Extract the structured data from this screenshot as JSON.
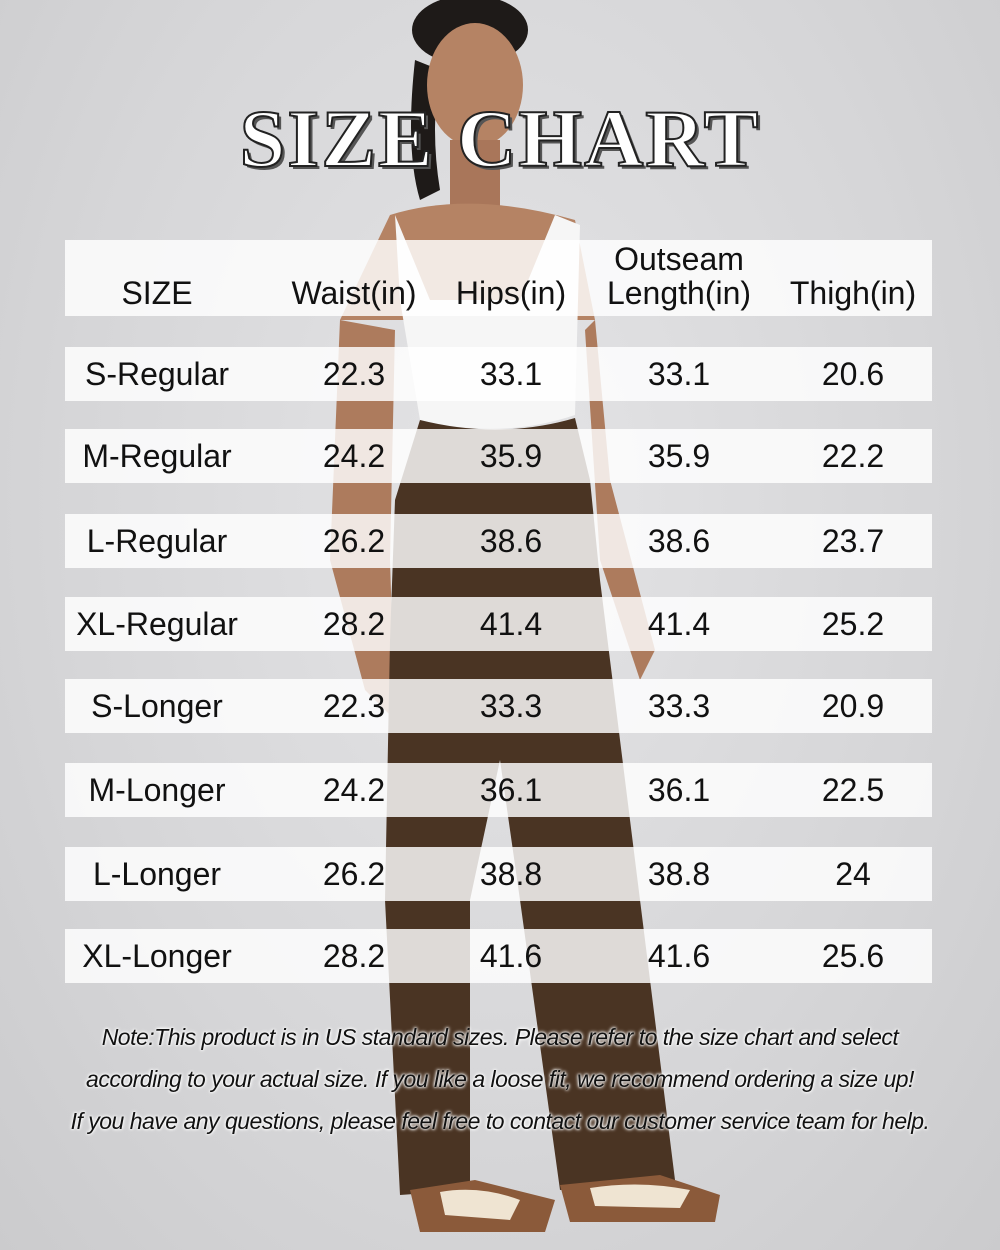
{
  "title": "SIZE CHART",
  "table": {
    "headers": [
      "SIZE",
      "Waist(in)",
      "Hips(in)",
      "Outseam Length(in)",
      "Thigh(in)"
    ],
    "rows": [
      [
        "S-Regular",
        "22.3",
        "33.1",
        "33.1",
        "20.6"
      ],
      [
        "M-Regular",
        "24.2",
        "35.9",
        "35.9",
        "22.2"
      ],
      [
        "L-Regular",
        "26.2",
        "38.6",
        "38.6",
        "23.7"
      ],
      [
        "XL-Regular",
        "28.2",
        "41.4",
        "41.4",
        "25.2"
      ],
      [
        "S-Longer",
        "22.3",
        "33.3",
        "33.3",
        "20.9"
      ],
      [
        "M-Longer",
        "24.2",
        "36.1",
        "36.1",
        "22.5"
      ],
      [
        "L-Longer",
        "26.2",
        "38.8",
        "38.8",
        "24"
      ],
      [
        "XL-Longer",
        "28.2",
        "41.6",
        "41.6",
        "25.6"
      ]
    ]
  },
  "note": [
    "Note:This product is in US standard sizes. Please refer to the size chart and select",
    "according to your actual size. If you like a loose fit, we  recommend ordering a size up!",
    "If you have any questions, please feel free to contact our customer service team for help."
  ],
  "colors": {
    "background": "#d9d9db",
    "pants": "#4a3423",
    "top": "#f7f7f7"
  }
}
